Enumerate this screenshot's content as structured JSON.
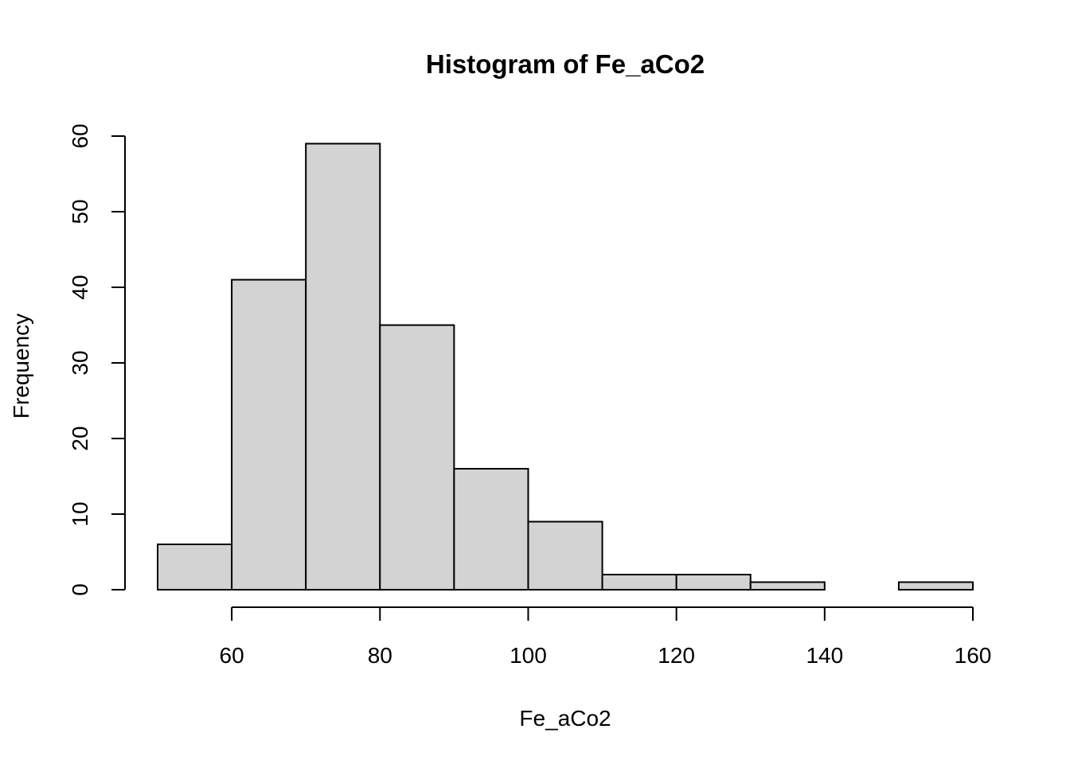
{
  "chart_data": {
    "type": "bar",
    "title": "Histogram of Fe_aCo2",
    "xlabel": "Fe_aCo2",
    "ylabel": "Frequency",
    "bins": [
      {
        "start": 50,
        "end": 60,
        "count": 6
      },
      {
        "start": 60,
        "end": 70,
        "count": 41
      },
      {
        "start": 70,
        "end": 80,
        "count": 59
      },
      {
        "start": 80,
        "end": 90,
        "count": 35
      },
      {
        "start": 90,
        "end": 100,
        "count": 16
      },
      {
        "start": 100,
        "end": 110,
        "count": 9
      },
      {
        "start": 110,
        "end": 120,
        "count": 2
      },
      {
        "start": 120,
        "end": 130,
        "count": 2
      },
      {
        "start": 130,
        "end": 140,
        "count": 1
      },
      {
        "start": 140,
        "end": 150,
        "count": 0
      },
      {
        "start": 150,
        "end": 160,
        "count": 1
      }
    ],
    "x_ticks": [
      60,
      80,
      100,
      120,
      140,
      160
    ],
    "y_ticks": [
      0,
      10,
      20,
      30,
      40,
      50,
      60
    ],
    "xlim": [
      50,
      160
    ],
    "ylim": [
      0,
      60
    ],
    "grid": false,
    "bar_fill": "#d3d3d3",
    "bar_stroke": "#000000"
  }
}
